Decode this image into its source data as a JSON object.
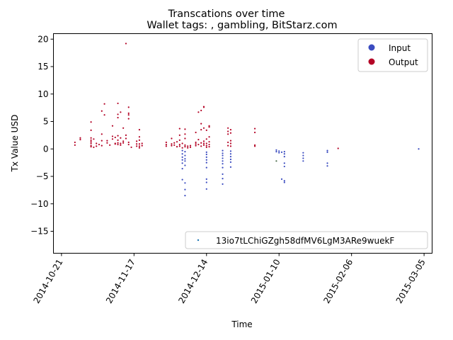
{
  "chart_data": {
    "type": "scatter",
    "title": "Transcations over time",
    "subtitle": "Wallet tags: , gambling, BitStarz.com",
    "xlabel": "Time",
    "ylabel": "Tx Value USD",
    "x_type": "date",
    "xlim": [
      "2014-10-18",
      "2015-03-08"
    ],
    "ylim": [
      -19,
      21
    ],
    "x_ticks": [
      "2014-10-21",
      "2014-11-17",
      "2014-12-14",
      "2015-01-10",
      "2015-02-06",
      "2015-03-05"
    ],
    "y_ticks": [
      -15,
      -10,
      -5,
      0,
      5,
      10,
      15,
      20
    ],
    "y_tick_labels": [
      "−15",
      "−10",
      "−5",
      "0",
      "5",
      "10",
      "15",
      "20"
    ],
    "grid": false,
    "colors": {
      "input": "#3b4cc0",
      "output": "#b40426",
      "other": "#4a6a4a"
    },
    "legend": {
      "placement": "top-right",
      "entries": [
        {
          "label": "Input",
          "color": "#3b4cc0"
        },
        {
          "label": "Output",
          "color": "#b40426"
        }
      ]
    },
    "legend2": {
      "placement": "lower-right",
      "label": "13io7tLChiGZgh58dfMV6LgM3ARe9wuekF",
      "color": "#1f77b4"
    },
    "series": [
      {
        "name": "Output",
        "color": "#b40426",
        "points": [
          [
            "2014-10-26",
            0.7
          ],
          [
            "2014-10-26",
            1.2
          ],
          [
            "2014-10-28",
            1.7
          ],
          [
            "2014-10-28",
            2.0
          ],
          [
            "2014-11-01",
            4.9
          ],
          [
            "2014-11-01",
            3.4
          ],
          [
            "2014-11-01",
            2.0
          ],
          [
            "2014-11-01",
            1.6
          ],
          [
            "2014-11-01",
            1.3
          ],
          [
            "2014-11-01",
            1.0
          ],
          [
            "2014-11-01",
            0.6
          ],
          [
            "2014-11-01",
            0.4
          ],
          [
            "2014-11-02",
            1.8
          ],
          [
            "2014-11-02",
            0.3
          ],
          [
            "2014-11-03",
            0.5
          ],
          [
            "2014-11-03",
            1.0
          ],
          [
            "2014-11-04",
            0.8
          ],
          [
            "2014-11-05",
            6.9
          ],
          [
            "2014-11-05",
            2.7
          ],
          [
            "2014-11-05",
            1.5
          ],
          [
            "2014-11-05",
            0.6
          ],
          [
            "2014-11-06",
            8.2
          ],
          [
            "2014-11-06",
            6.2
          ],
          [
            "2014-11-07",
            1.1
          ],
          [
            "2014-11-07",
            1.5
          ],
          [
            "2014-11-08",
            0.7
          ],
          [
            "2014-11-09",
            4.2
          ],
          [
            "2014-11-09",
            2.3
          ],
          [
            "2014-11-09",
            1.8
          ],
          [
            "2014-11-10",
            1.0
          ],
          [
            "2014-11-10",
            2.1
          ],
          [
            "2014-11-10",
            0.9
          ],
          [
            "2014-11-11",
            8.3
          ],
          [
            "2014-11-11",
            6.3
          ],
          [
            "2014-11-11",
            5.7
          ],
          [
            "2014-11-11",
            2.4
          ],
          [
            "2014-11-11",
            1.6
          ],
          [
            "2014-11-11",
            1.1
          ],
          [
            "2014-11-11",
            0.8
          ],
          [
            "2014-11-12",
            6.7
          ],
          [
            "2014-11-12",
            2.0
          ],
          [
            "2014-11-12",
            1.0
          ],
          [
            "2014-11-12",
            0.7
          ],
          [
            "2014-11-13",
            3.8
          ],
          [
            "2014-11-13",
            1.4
          ],
          [
            "2014-11-13",
            1.1
          ],
          [
            "2014-11-14",
            19.2
          ],
          [
            "2014-11-14",
            2.5
          ],
          [
            "2014-11-14",
            1.9
          ],
          [
            "2014-11-15",
            7.6
          ],
          [
            "2014-11-15",
            6.5
          ],
          [
            "2014-11-15",
            6.2
          ],
          [
            "2014-11-15",
            5.5
          ],
          [
            "2014-11-15",
            1.2
          ],
          [
            "2014-11-15",
            0.8
          ],
          [
            "2014-11-16",
            0.3
          ],
          [
            "2014-11-18",
            1.4
          ],
          [
            "2014-11-18",
            0.5
          ],
          [
            "2014-11-18",
            0.9
          ],
          [
            "2014-11-19",
            3.5
          ],
          [
            "2014-11-19",
            2.2
          ],
          [
            "2014-11-19",
            1.6
          ],
          [
            "2014-11-19",
            0.9
          ],
          [
            "2014-11-19",
            0.5
          ],
          [
            "2014-11-19",
            0.2
          ],
          [
            "2014-11-20",
            1.0
          ],
          [
            "2014-11-20",
            0.6
          ],
          [
            "2014-11-29",
            1.2
          ],
          [
            "2014-11-29",
            0.8
          ],
          [
            "2014-11-29",
            0.5
          ],
          [
            "2014-12-01",
            0.9
          ],
          [
            "2014-12-01",
            0.6
          ],
          [
            "2014-12-01",
            1.9
          ],
          [
            "2014-12-02",
            1.1
          ],
          [
            "2014-12-02",
            0.7
          ],
          [
            "2014-12-03",
            1.3
          ],
          [
            "2014-12-03",
            0.4
          ],
          [
            "2014-12-04",
            3.7
          ],
          [
            "2014-12-04",
            2.5
          ],
          [
            "2014-12-04",
            1.6
          ],
          [
            "2014-12-04",
            0.8
          ],
          [
            "2014-12-04",
            0.5
          ],
          [
            "2014-12-05",
            1.0
          ],
          [
            "2014-12-05",
            0.2
          ],
          [
            "2014-12-06",
            3.6
          ],
          [
            "2014-12-06",
            2.7
          ],
          [
            "2014-12-06",
            1.9
          ],
          [
            "2014-12-06",
            0.4
          ],
          [
            "2014-12-06",
            0.7
          ],
          [
            "2014-12-07",
            0.5
          ],
          [
            "2014-12-07",
            0.2
          ],
          [
            "2014-12-08",
            0.6
          ],
          [
            "2014-12-08",
            0.3
          ],
          [
            "2014-12-10",
            3.0
          ],
          [
            "2014-12-10",
            1.2
          ],
          [
            "2014-12-10",
            0.9
          ],
          [
            "2014-12-10",
            0.6
          ],
          [
            "2014-12-11",
            6.7
          ],
          [
            "2014-12-11",
            1.7
          ],
          [
            "2014-12-11",
            0.8
          ],
          [
            "2014-12-12",
            7.0
          ],
          [
            "2014-12-12",
            4.6
          ],
          [
            "2014-12-12",
            3.5
          ],
          [
            "2014-12-12",
            1.1
          ],
          [
            "2014-12-12",
            0.5
          ],
          [
            "2014-12-13",
            7.7
          ],
          [
            "2014-12-13",
            7.6
          ],
          [
            "2014-12-13",
            3.8
          ],
          [
            "2014-12-13",
            1.4
          ],
          [
            "2014-12-13",
            0.7
          ],
          [
            "2014-12-13",
            1.0
          ],
          [
            "2014-12-14",
            3.4
          ],
          [
            "2014-12-14",
            1.8
          ],
          [
            "2014-12-14",
            1.0
          ],
          [
            "2014-12-14",
            0.6
          ],
          [
            "2014-12-14",
            0.3
          ],
          [
            "2014-12-15",
            4.2
          ],
          [
            "2014-12-15",
            4.0
          ],
          [
            "2014-12-15",
            2.2
          ],
          [
            "2014-12-15",
            1.3
          ],
          [
            "2014-12-15",
            0.8
          ],
          [
            "2014-12-15",
            0.4
          ],
          [
            "2014-12-22",
            3.8
          ],
          [
            "2014-12-22",
            3.2
          ],
          [
            "2014-12-22",
            2.7
          ],
          [
            "2014-12-22",
            1.2
          ],
          [
            "2014-12-22",
            0.6
          ],
          [
            "2014-12-23",
            3.5
          ],
          [
            "2014-12-23",
            2.9
          ],
          [
            "2014-12-23",
            1.5
          ],
          [
            "2014-12-23",
            1.0
          ],
          [
            "2014-12-23",
            0.5
          ],
          [
            "2015-01-01",
            3.7
          ],
          [
            "2015-01-01",
            3.0
          ],
          [
            "2015-01-01",
            0.7
          ],
          [
            "2015-01-01",
            0.5
          ],
          [
            "2015-02-01",
            0.1
          ]
        ]
      },
      {
        "name": "Input",
        "color": "#3b4cc0",
        "points": [
          [
            "2014-12-05",
            -0.3
          ],
          [
            "2014-12-05",
            -0.9
          ],
          [
            "2014-12-05",
            -1.5
          ],
          [
            "2014-12-05",
            -2.0
          ],
          [
            "2014-12-05",
            -2.6
          ],
          [
            "2014-12-05",
            -3.6
          ],
          [
            "2014-12-05",
            -5.6
          ],
          [
            "2014-12-06",
            -0.5
          ],
          [
            "2014-12-06",
            -1.2
          ],
          [
            "2014-12-06",
            -1.8
          ],
          [
            "2014-12-06",
            -2.2
          ],
          [
            "2014-12-06",
            -3.0
          ],
          [
            "2014-12-06",
            -6.2
          ],
          [
            "2014-12-06",
            -7.4
          ],
          [
            "2014-12-06",
            -8.5
          ],
          [
            "2014-12-14",
            -0.6
          ],
          [
            "2014-12-14",
            -1.0
          ],
          [
            "2014-12-14",
            -1.5
          ],
          [
            "2014-12-14",
            -2.0
          ],
          [
            "2014-12-14",
            -2.5
          ],
          [
            "2014-12-14",
            -3.4
          ],
          [
            "2014-12-14",
            -5.5
          ],
          [
            "2014-12-14",
            -6.1
          ],
          [
            "2014-12-14",
            -7.3
          ],
          [
            "2014-12-20",
            -0.3
          ],
          [
            "2014-12-20",
            -0.8
          ],
          [
            "2014-12-20",
            -1.2
          ],
          [
            "2014-12-20",
            -1.7
          ],
          [
            "2014-12-20",
            -2.2
          ],
          [
            "2014-12-20",
            -2.7
          ],
          [
            "2014-12-20",
            -3.4
          ],
          [
            "2014-12-20",
            -4.6
          ],
          [
            "2014-12-20",
            -5.4
          ],
          [
            "2014-12-20",
            -6.4
          ],
          [
            "2014-12-23",
            -0.4
          ],
          [
            "2014-12-23",
            -0.9
          ],
          [
            "2014-12-23",
            -1.4
          ],
          [
            "2014-12-23",
            -1.9
          ],
          [
            "2014-12-23",
            -2.4
          ],
          [
            "2014-12-23",
            -3.3
          ],
          [
            "2015-01-09",
            -0.2
          ],
          [
            "2015-01-09",
            -0.5
          ],
          [
            "2015-01-10",
            -0.4
          ],
          [
            "2015-01-10",
            -0.7
          ],
          [
            "2015-01-11",
            -0.6
          ],
          [
            "2015-01-11",
            -5.5
          ],
          [
            "2015-01-12",
            -0.5
          ],
          [
            "2015-01-12",
            -0.9
          ],
          [
            "2015-01-12",
            -1.4
          ],
          [
            "2015-01-12",
            -2.6
          ],
          [
            "2015-01-12",
            -3.2
          ],
          [
            "2015-01-12",
            -5.8
          ],
          [
            "2015-01-12",
            -6.1
          ],
          [
            "2015-01-19",
            -0.7
          ],
          [
            "2015-01-19",
            -1.2
          ],
          [
            "2015-01-19",
            -1.7
          ],
          [
            "2015-01-19",
            -2.2
          ],
          [
            "2015-01-28",
            -0.3
          ],
          [
            "2015-01-28",
            -0.6
          ],
          [
            "2015-01-28",
            -2.6
          ],
          [
            "2015-01-28",
            -3.1
          ],
          [
            "2015-03-03",
            0.0
          ]
        ]
      },
      {
        "name": "",
        "color": "#4a6a4a",
        "points": [
          [
            "2015-01-09",
            -2.2
          ]
        ]
      }
    ]
  }
}
